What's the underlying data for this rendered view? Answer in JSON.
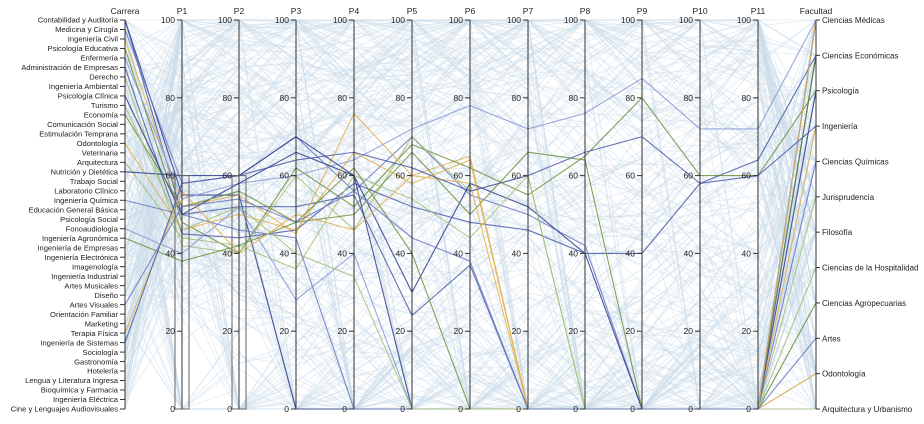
{
  "chart_data": {
    "type": "parallel-coordinates",
    "dimensions": [
      {
        "key": "Carrera",
        "label": "Carrera",
        "kind": "categorical",
        "categories": [
          "Contabilidad y Auditoría",
          "Medicina y Cirugía",
          "Ingeniería Civil",
          "Psicología Educativa",
          "Enfermería",
          "Administración de Empresas",
          "Derecho",
          "Ingeniería Ambiental",
          "Psicología Clínica",
          "Turismo",
          "Economía",
          "Comunicación Social",
          "Estimulación Temprana",
          "Odontología",
          "Veterinaria",
          "Arquitectura",
          "Nutrición y Dietética",
          "Trabajo Social",
          "Laboratorio Clínico",
          "Ingeniería Química",
          "Educación General Básica",
          "Psicología Social",
          "Fonoaudiología",
          "Ingeniería Agronómica",
          "Ingeniería de Empresas",
          "Ingeniería Electrónica",
          "Imagenología",
          "Ingeniería Industrial",
          "Artes Musicales",
          "Diseño",
          "Artes Visuales",
          "Orientación Familiar",
          "Marketing",
          "Terapia Física",
          "Ingeniería de Sistemas",
          "Sociología",
          "Gastronomía",
          "Hotelería",
          "Lengua y Literatura Ingresa",
          "Bioquímica y Farmacia",
          "Ingeniería Eléctrica",
          "Cine y Lenguajes Audiovisuales"
        ]
      },
      {
        "key": "P1",
        "label": "P1",
        "kind": "numeric",
        "range": [
          0,
          100
        ]
      },
      {
        "key": "P2",
        "label": "P2",
        "kind": "numeric",
        "range": [
          0,
          100
        ]
      },
      {
        "key": "P3",
        "label": "P3",
        "kind": "numeric",
        "range": [
          0,
          100
        ]
      },
      {
        "key": "P4",
        "label": "P4",
        "kind": "numeric",
        "range": [
          0,
          100
        ]
      },
      {
        "key": "P5",
        "label": "P5",
        "kind": "numeric",
        "range": [
          0,
          100
        ]
      },
      {
        "key": "P6",
        "label": "P6",
        "kind": "numeric",
        "range": [
          0,
          100
        ]
      },
      {
        "key": "P7",
        "label": "P7",
        "kind": "numeric",
        "range": [
          0,
          100
        ]
      },
      {
        "key": "P8",
        "label": "P8",
        "kind": "numeric",
        "range": [
          0,
          100
        ]
      },
      {
        "key": "P9",
        "label": "P9",
        "kind": "numeric",
        "range": [
          0,
          100
        ]
      },
      {
        "key": "P10",
        "label": "P10",
        "kind": "numeric",
        "range": [
          0,
          100
        ]
      },
      {
        "key": "P11",
        "label": "P11",
        "kind": "numeric",
        "range": [
          0,
          100
        ]
      },
      {
        "key": "Facultad",
        "label": "Facultad",
        "kind": "categorical",
        "categories": [
          "Ciencias Médicas",
          "Ciencias Económicas",
          "Psicología",
          "Ingeniería",
          "Ciencias Químicas",
          "Jurisprudencia",
          "Filosofía",
          "Ciencias de la Hospitalidad",
          "Ciencias Agropecuarias",
          "Artes",
          "Odontología",
          "Arquitectura y Urbanismo"
        ]
      }
    ],
    "ticks": [
      0,
      20,
      40,
      60,
      80,
      100
    ],
    "tick_labels": [
      "0",
      "20",
      "40",
      "60",
      "80",
      "100"
    ],
    "brushes": {
      "P1": [
        0,
        60
      ],
      "P2": [
        0,
        60
      ]
    },
    "colors": {
      "background": "#c9dbe8",
      "highlight": [
        "#2d3a8c",
        "#6b78c4",
        "#6f8f3c",
        "#a8c07a",
        "#e0b050",
        "#8a98d8",
        "#4a5aa8"
      ]
    },
    "highlighted_series": [
      {
        "Carrera": "Contabilidad y Auditoría",
        "values": [
          55,
          55,
          0,
          0,
          0,
          0,
          0,
          0,
          0,
          0,
          0
        ],
        "Facultad": "Ciencias Económicas",
        "color": "#2d3a8c"
      },
      {
        "Carrera": "Contabilidad y Auditoría",
        "values": [
          50,
          52,
          52,
          55,
          24,
          37,
          0,
          0,
          0,
          0,
          0
        ],
        "Facultad": "Ciencias Económicas",
        "color": "#4a5aa8"
      },
      {
        "Carrera": "Medicina y Cirugía",
        "values": [
          58,
          60,
          70,
          56,
          70,
          55,
          50,
          42,
          0,
          0,
          0
        ],
        "Facultad": "Ciencias Médicas",
        "color": "#6b78c4"
      },
      {
        "Carrera": "Ingeniería Civil",
        "values": [
          52,
          55,
          45,
          76,
          60,
          65,
          0,
          0,
          0,
          0,
          0
        ],
        "Facultad": "Ingeniería",
        "color": "#e0b050"
      },
      {
        "Carrera": "Psicología Educativa",
        "values": [
          48,
          40,
          62,
          52,
          68,
          62,
          55,
          65,
          80,
          60,
          60
        ],
        "Facultad": "Psicología",
        "color": "#6f8f3c"
      },
      {
        "Carrera": "Enfermería",
        "values": [
          54,
          58,
          60,
          64,
          72,
          78,
          72,
          76,
          85,
          72,
          72
        ],
        "Facultad": "Ciencias Médicas",
        "color": "#8a98d8"
      },
      {
        "Carrera": "Administración de Empresas",
        "values": [
          45,
          44,
          46,
          58,
          52,
          48,
          46,
          40,
          40,
          58,
          64
        ],
        "Facultad": "Ciencias Económicas",
        "color": "#4a5aa8"
      },
      {
        "Carrera": "Derecho",
        "values": [
          42,
          40,
          60,
          46,
          70,
          56,
          60,
          0,
          0,
          0,
          0
        ],
        "Facultad": "Jurisprudencia",
        "color": "#a8c07a"
      },
      {
        "Carrera": "Psicología Clínica",
        "values": [
          50,
          58,
          66,
          60,
          30,
          58,
          52,
          40,
          0,
          0,
          0
        ],
        "Facultad": "Psicología",
        "color": "#2d3a8c"
      },
      {
        "Carrera": "Economía",
        "values": [
          52,
          56,
          48,
          50,
          66,
          50,
          66,
          64,
          0,
          0,
          0
        ],
        "Facultad": "Ciencias Económicas",
        "color": "#6f8f3c"
      },
      {
        "Carrera": "Odontología",
        "values": [
          46,
          50,
          46,
          66,
          58,
          64,
          0,
          0,
          0,
          0,
          0
        ],
        "Facultad": "Odontología",
        "color": "#e0b050"
      },
      {
        "Carrera": "Arquitectura",
        "values": [
          44,
          42,
          36,
          60,
          54,
          44,
          60,
          0,
          0,
          0,
          0
        ],
        "Facultad": "Arquitectura y Urbanismo",
        "color": "#a8c07a"
      },
      {
        "Carrera": "Nutrición y Dietética",
        "values": [
          60,
          60,
          70,
          60,
          0,
          0,
          0,
          0,
          0,
          0,
          0
        ],
        "Facultad": "Ciencias Médicas",
        "color": "#2d3a8c"
      },
      {
        "Carrera": "Ingeniería Química",
        "values": [
          50,
          46,
          44,
          0,
          0,
          0,
          0,
          0,
          0,
          0,
          0
        ],
        "Facultad": "Ciencias Químicas",
        "color": "#6b78c4"
      },
      {
        "Carrera": "Fonoaudiología",
        "values": [
          40,
          52,
          28,
          40,
          0,
          0,
          0,
          0,
          0,
          0,
          0
        ],
        "Facultad": "Ciencias Médicas",
        "color": "#8a98d8"
      },
      {
        "Carrera": "Ingeniería Agronómica",
        "values": [
          38,
          42,
          48,
          62,
          40,
          0,
          0,
          0,
          0,
          0,
          0
        ],
        "Facultad": "Ciencias Agropecuarias",
        "color": "#6f8f3c"
      },
      {
        "Carrera": "Terapia Física",
        "values": [
          56,
          40,
          50,
          46,
          60,
          58,
          0,
          0,
          0,
          0,
          0
        ],
        "Facultad": "Ciencias Médicas",
        "color": "#e0b050"
      },
      {
        "Carrera": "Ingeniería de Sistemas",
        "values": [
          58,
          60,
          64,
          66,
          62,
          56,
          60,
          66,
          70,
          58,
          60
        ],
        "Facultad": "Ingeniería",
        "color": "#4a5aa8"
      },
      {
        "Carrera": "Turismo",
        "values": [
          46,
          52,
          40,
          34,
          0,
          0,
          0,
          0,
          0,
          0,
          0
        ],
        "Facultad": "Ciencias de la Hospitalidad",
        "color": "#a8c07a"
      },
      {
        "Carrera": "Artes Visuales",
        "values": [
          52,
          54,
          48,
          56,
          44,
          38,
          0,
          0,
          0,
          0,
          0
        ],
        "Facultad": "Artes",
        "color": "#6b78c4"
      }
    ]
  }
}
